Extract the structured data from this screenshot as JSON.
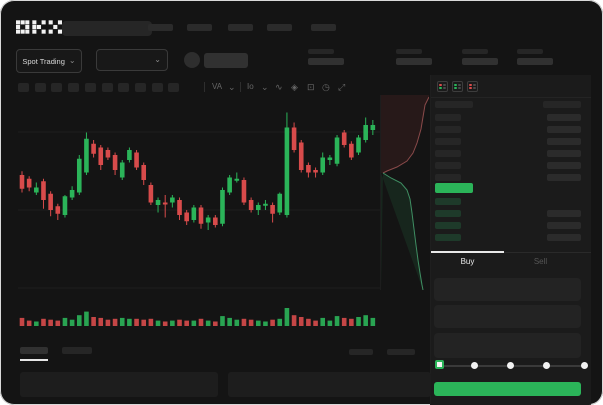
{
  "app": {
    "logo_text": "OKX"
  },
  "colors": {
    "up_green": "#2bb459",
    "down_red": "#d84b4b",
    "accent_green": "#2bb459",
    "window_bg": "#141414",
    "panel_bg": "#1b1b1b",
    "placeholder": "#2b2b2b",
    "bid_row_tint": "#1e3a2a"
  },
  "header": {
    "nav_placeholder_count": 5
  },
  "market_bar": {
    "pair_mode_label": "Spot Trading",
    "chevron_glyph": "⌄",
    "stat_group_count": 4
  },
  "chart_toolbar": {
    "interval_placeholder_count": 10,
    "dropdown1_label": "VA",
    "dropdown2_label": "Io",
    "chevron_glyph": "⌄",
    "wave_glyph": "∿",
    "eraser_glyph": "◈",
    "camera_glyph": "⊡",
    "history_glyph": "◷",
    "fullscreen_glyph": "⤢"
  },
  "orderbook": {
    "mode_icons": [
      "orderbook-combined-icon",
      "orderbook-bids-icon",
      "orderbook-asks-icon"
    ],
    "ask_row_count": 6,
    "bid_row_count": 4,
    "bid_right_bar_from_index": 1,
    "last_price_indicator": "green-bar"
  },
  "trade_panel": {
    "tabs": [
      {
        "label": "Buy",
        "active": true
      },
      {
        "label": "Sell",
        "active": false
      }
    ],
    "field_count": 3,
    "slider": {
      "stop_count": 5,
      "selected_index": 0,
      "value_percent": 0
    },
    "submit_button": {
      "label": "",
      "color": "#2bb459"
    }
  },
  "bottom_bar": {
    "left_tab_count": 2,
    "active_left_tab_index": 0,
    "right_placeholder_count": 2,
    "panel_count": 2
  },
  "chart_data": [
    {
      "type": "candlestick",
      "title": "",
      "xlabel": "",
      "ylabel": "",
      "x_count": 50,
      "price_range_normalized": [
        0,
        100
      ],
      "gridlines_y_svg": [
        27,
        105,
        183
      ],
      "format": "candles entries are [open, high, low, close, volume(0-1)] in normalized price units (no axis labels visible in UI)",
      "candles": [
        [
          48,
          51,
          34,
          37,
          0.45
        ],
        [
          45,
          47,
          35,
          38,
          0.3
        ],
        [
          34,
          42,
          32,
          38,
          0.25
        ],
        [
          43,
          45,
          21,
          28,
          0.4
        ],
        [
          33,
          35,
          15,
          20,
          0.35
        ],
        [
          23,
          25,
          12,
          17,
          0.3
        ],
        [
          16,
          32,
          14,
          31,
          0.45
        ],
        [
          30,
          39,
          28,
          36,
          0.35
        ],
        [
          34,
          64,
          32,
          61,
          0.6
        ],
        [
          50,
          82,
          48,
          77,
          0.8
        ],
        [
          73,
          76,
          62,
          65,
          0.5
        ],
        [
          70,
          72,
          52,
          56,
          0.45
        ],
        [
          68,
          70,
          60,
          62,
          0.35
        ],
        [
          64,
          66,
          48,
          52,
          0.4
        ],
        [
          46,
          60,
          44,
          58,
          0.45
        ],
        [
          60,
          70,
          58,
          68,
          0.4
        ],
        [
          66,
          68,
          52,
          54,
          0.4
        ],
        [
          56,
          58,
          40,
          44,
          0.35
        ],
        [
          40,
          42,
          24,
          26,
          0.4
        ],
        [
          24,
          30,
          18,
          28,
          0.3
        ],
        [
          26,
          32,
          14,
          25,
          0.25
        ],
        [
          26,
          32,
          22,
          30,
          0.3
        ],
        [
          28,
          30,
          12,
          16,
          0.35
        ],
        [
          18,
          20,
          8,
          11,
          0.3
        ],
        [
          12,
          24,
          10,
          22,
          0.3
        ],
        [
          22,
          24,
          5,
          9,
          0.4
        ],
        [
          10,
          16,
          4,
          14,
          0.3
        ],
        [
          14,
          16,
          6,
          8,
          0.25
        ],
        [
          9,
          38,
          7,
          36,
          0.55
        ],
        [
          34,
          48,
          32,
          46,
          0.45
        ],
        [
          44,
          50,
          42,
          45,
          0.35
        ],
        [
          44,
          46,
          24,
          26,
          0.4
        ],
        [
          28,
          30,
          18,
          20,
          0.35
        ],
        [
          20,
          26,
          16,
          24,
          0.3
        ],
        [
          24,
          28,
          20,
          25,
          0.25
        ],
        [
          24,
          26,
          10,
          17,
          0.35
        ],
        [
          18,
          34,
          16,
          33,
          0.4
        ],
        [
          16,
          98,
          14,
          86,
          1.0
        ],
        [
          86,
          90,
          66,
          68,
          0.6
        ],
        [
          74,
          76,
          50,
          52,
          0.5
        ],
        [
          56,
          58,
          46,
          50,
          0.4
        ],
        [
          52,
          54,
          46,
          50,
          0.3
        ],
        [
          50,
          66,
          48,
          62,
          0.45
        ],
        [
          60,
          64,
          56,
          62,
          0.3
        ],
        [
          57,
          80,
          55,
          78,
          0.55
        ],
        [
          82,
          84,
          70,
          72,
          0.45
        ],
        [
          73,
          75,
          60,
          62,
          0.4
        ],
        [
          66,
          80,
          64,
          78,
          0.5
        ],
        [
          76,
          94,
          74,
          88,
          0.6
        ],
        [
          84,
          92,
          80,
          88,
          0.45
        ]
      ]
    },
    {
      "type": "area",
      "subtype": "vertical-depth-profile",
      "asks_curve": [
        [
          48,
          2
        ],
        [
          44,
          10
        ],
        [
          42,
          22
        ],
        [
          40,
          34
        ],
        [
          36,
          48
        ],
        [
          32,
          58
        ],
        [
          26,
          66
        ],
        [
          16,
          72
        ],
        [
          6,
          76
        ],
        [
          2,
          78
        ]
      ],
      "bids_curve": [
        [
          2,
          78
        ],
        [
          10,
          83
        ],
        [
          20,
          88
        ],
        [
          26,
          95
        ],
        [
          29,
          104
        ],
        [
          31,
          118
        ],
        [
          33,
          134
        ],
        [
          35,
          150
        ],
        [
          37,
          165
        ],
        [
          39,
          178
        ],
        [
          41,
          190
        ],
        [
          42,
          195
        ]
      ],
      "asks_color": "#8a4a4a",
      "bids_color": "#3f8f63"
    }
  ]
}
